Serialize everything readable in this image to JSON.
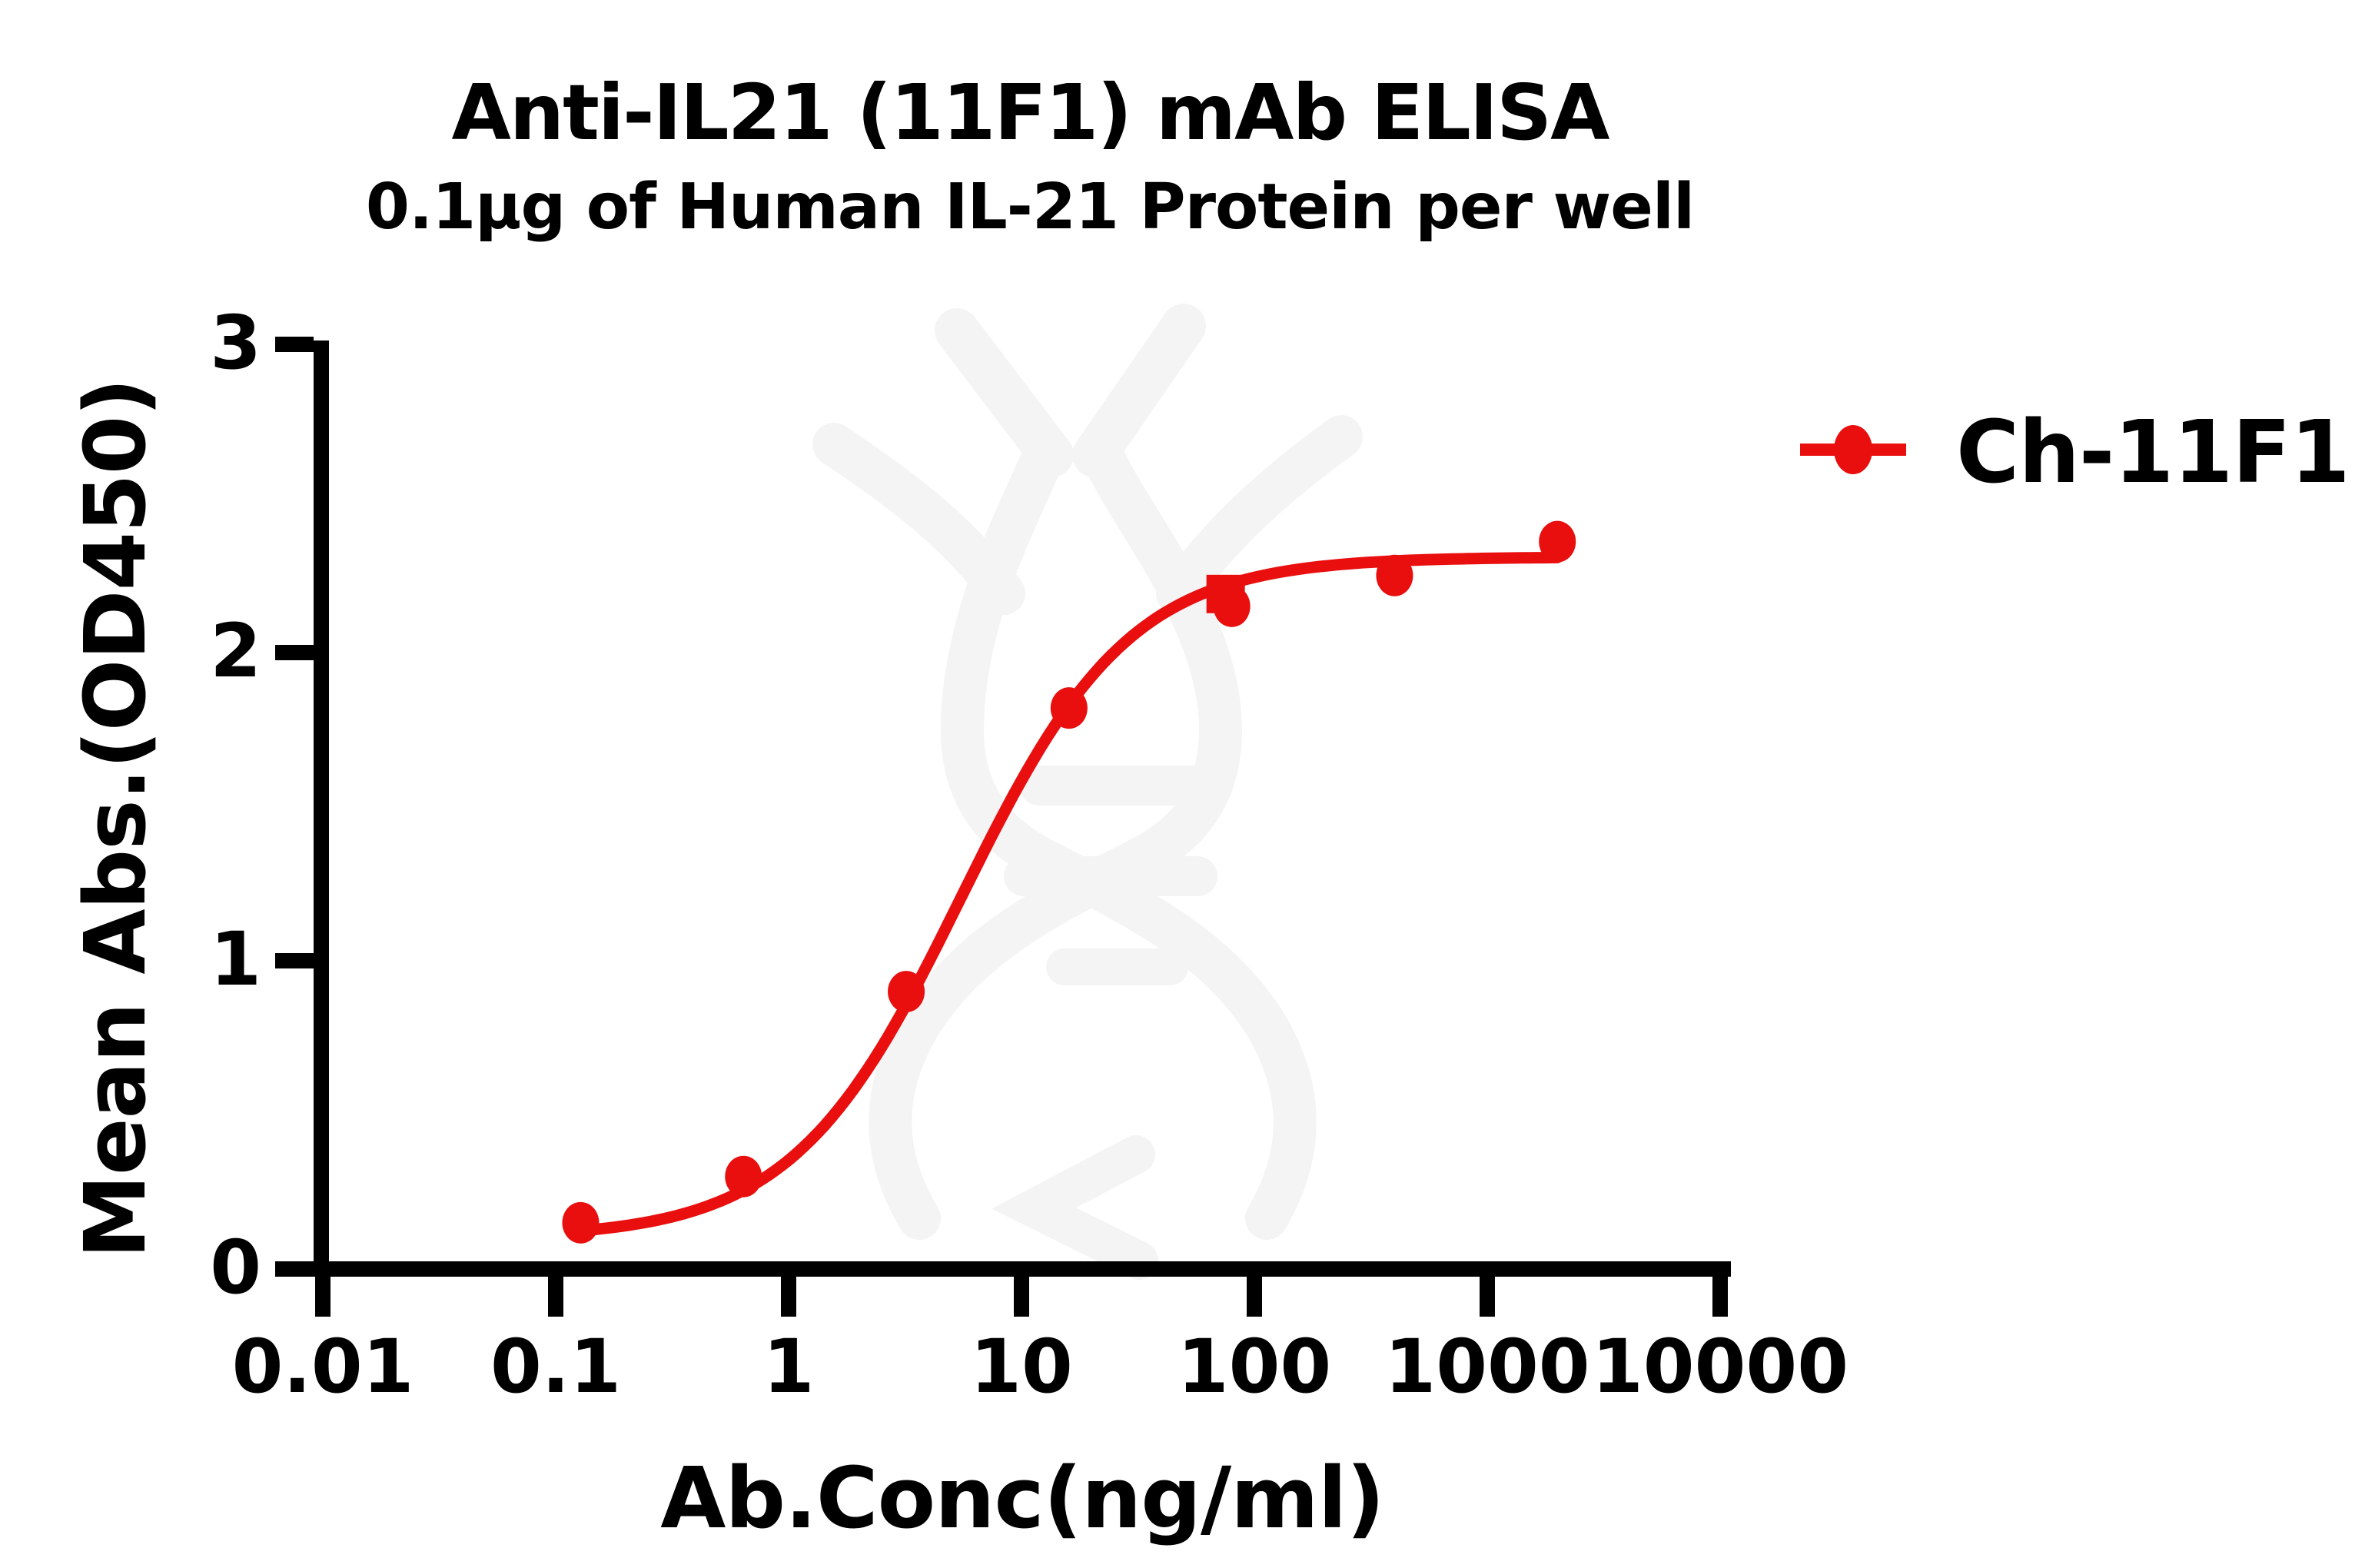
{
  "title": "Anti-IL21 (11F1) mAb ELISA",
  "subtitle": "0.1µg of Human IL-21 Protein per well",
  "legend": {
    "label": "Ch-11F1",
    "marker_shape": "circle",
    "color": "#e90f0f",
    "position": "right-top"
  },
  "watermark": {
    "name": "dna-helix-watermark",
    "color": "#f4f4f4"
  },
  "colors": {
    "series_red": "#e90f0f",
    "axis_black": "#000000",
    "background": "#ffffff"
  },
  "axes": {
    "x": {
      "label": "Ab.Conc(ng/ml)",
      "scale": "log",
      "min": 0.01,
      "max": 10000,
      "ticks": [
        {
          "label": "0.01",
          "value": 0.01
        },
        {
          "label": "0.1",
          "value": 0.1
        },
        {
          "label": "1",
          "value": 1
        },
        {
          "label": "10",
          "value": 10
        },
        {
          "label": "100",
          "value": 100
        },
        {
          "label": "1000",
          "value": 1000
        },
        {
          "label": "10000",
          "value": 10000
        }
      ]
    },
    "y": {
      "label": "Mean Abs.(OD450)",
      "scale": "linear",
      "min": 0,
      "max": 3,
      "ticks": [
        {
          "label": "0",
          "value": 0
        },
        {
          "label": "1",
          "value": 1
        },
        {
          "label": "2",
          "value": 2
        },
        {
          "label": "3",
          "value": 3
        }
      ]
    }
  },
  "chart_data": {
    "type": "line",
    "title": "Anti-IL21 (11F1) mAb ELISA",
    "subtitle": "0.1µg of Human IL-21 Protein per well",
    "xlabel": "Ab.Conc(ng/ml)",
    "ylabel": "Mean Abs.(OD450)",
    "x_scale": "log",
    "xlim": [
      0.01,
      10000
    ],
    "ylim": [
      0,
      3
    ],
    "grid": false,
    "legend_position": "right-top",
    "series": [
      {
        "name": "Ch-11F1",
        "color": "#e90f0f",
        "marker": "circle",
        "x": [
          0.128,
          0.64,
          3.2,
          16,
          80,
          400,
          2000
        ],
        "y": [
          0.15,
          0.3,
          0.9,
          1.82,
          2.15,
          2.25,
          2.36
        ]
      }
    ],
    "extra_marker": {
      "shape": "square",
      "x": 80,
      "y": 2.19,
      "color": "#e90f0f"
    },
    "fit_curve": {
      "model": "4PL",
      "bottom": 0.1,
      "top": 2.31,
      "ec50": 5.5,
      "hill": 1.2,
      "x_range": [
        0.128,
        2000
      ]
    }
  }
}
